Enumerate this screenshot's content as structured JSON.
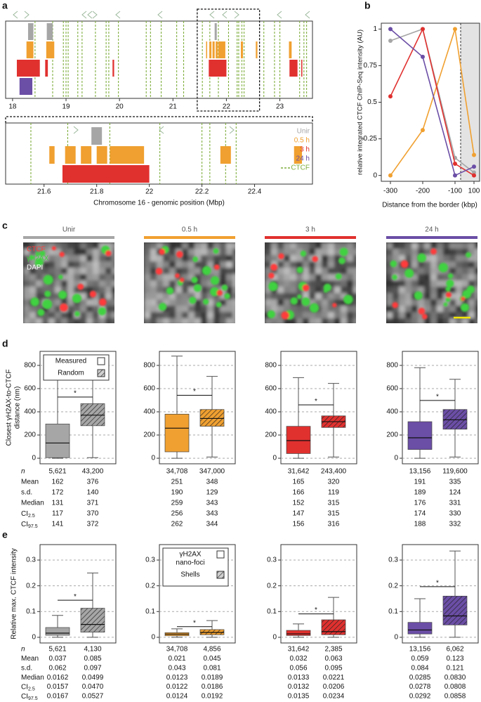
{
  "panel_labels": [
    "a",
    "b",
    "c",
    "d",
    "e"
  ],
  "chart_data": [
    {
      "type": "track",
      "xlim": [
        17.87,
        23.61
      ],
      "xticks": [
        18,
        19,
        20,
        21,
        22,
        23
      ],
      "detail_xlim": [
        21.454,
        22.62
      ],
      "detail_xticks": [
        21.6,
        21.8,
        22,
        22.2,
        22.4
      ],
      "xlabel": "Chromosome 16 - genomic position (Mbp)",
      "series": [
        {
          "name": "Unir",
          "color": "#a6a6a6",
          "intervals": [
            [
              18.29,
              18.39
            ],
            [
              18.64,
              18.75
            ],
            [
              21.78,
              21.82
            ]
          ]
        },
        {
          "name": "0.5 h",
          "color": "#f0a030",
          "intervals": [
            [
              18.26,
              18.39
            ],
            [
              18.63,
              18.78
            ],
            [
              21.62,
              21.64
            ],
            [
              21.68,
              21.72
            ],
            [
              21.74,
              21.78
            ],
            [
              21.8,
              21.84
            ],
            [
              21.85,
              21.98
            ],
            [
              22.27,
              22.31
            ],
            [
              22.55,
              22.58
            ],
            [
              23.17,
              23.22
            ]
          ]
        },
        {
          "name": "3 h",
          "color": "#e0312f",
          "intervals": [
            [
              18.08,
              18.51
            ],
            [
              18.61,
              18.66
            ],
            [
              19.87,
              19.9
            ],
            [
              21.67,
              22.0
            ],
            [
              23.18,
              23.33
            ],
            [
              23.4,
              23.42
            ]
          ]
        },
        {
          "name": "24 h",
          "color": "#6b4ea6",
          "intervals": [
            [
              18.13,
              18.37
            ]
          ]
        }
      ],
      "ctcf": {
        "name": "CTCF",
        "color": "#7fae3e",
        "positions": [
          18.42,
          18.75,
          18.95,
          19.0,
          19.04,
          19.22,
          19.3,
          19.55,
          19.75,
          19.8,
          19.98,
          20.5,
          20.58,
          20.78,
          21.07,
          21.2,
          21.55,
          21.69,
          21.85,
          22.04,
          22.2,
          22.23,
          22.29,
          22.33,
          22.7,
          22.9,
          23.0,
          23.37,
          23.45,
          23.5
        ]
      }
    },
    {
      "type": "line",
      "categories": [
        "-300",
        "-200",
        "-100",
        "100"
      ],
      "ylim": [
        -0.04,
        1.04
      ],
      "yticks": [
        0,
        0.25,
        0.5,
        0.75,
        1
      ],
      "xlabel": "Distance from the border (kbp)",
      "ylabel": "relative integrated CTCF ChIP-Seq intensity (AU)",
      "series": [
        {
          "color": "#a6a6a6",
          "values": [
            0.92,
            1.0,
            0.12,
            0.02
          ]
        },
        {
          "color": "#f0a030",
          "values": [
            0.0,
            0.31,
            1.0,
            0.14
          ]
        },
        {
          "color": "#e0312f",
          "values": [
            0.54,
            1.0,
            0.08,
            0.0
          ]
        },
        {
          "color": "#6b4ea6",
          "values": [
            1.0,
            0.81,
            0.0,
            0.06
          ]
        }
      ]
    },
    {
      "type": "image",
      "panels": [
        {
          "title": "Unir",
          "color": "#a6a6a6"
        },
        {
          "title": "0.5 h",
          "color": "#f0a030"
        },
        {
          "title": "3 h",
          "color": "#e0312f"
        },
        {
          "title": "24 h",
          "color": "#6b4ea6"
        }
      ],
      "channels": [
        {
          "name": "CTCF",
          "color": "#ff3b3b"
        },
        {
          "name": "γH2AX",
          "color": "#3fd23f"
        },
        {
          "name": "DAPI",
          "color": "#ffffff"
        }
      ]
    },
    {
      "type": "box",
      "ylim": [
        -48,
        921
      ],
      "yticks": [
        0,
        200,
        400,
        600,
        800
      ],
      "grid": true,
      "ylabel": [
        "Closest γH2AX-to-CTCF",
        "distance (nm)"
      ],
      "legend_group": 0,
      "series": [
        {
          "name": [
            "Measured"
          ],
          "hatch": false
        },
        {
          "name": [
            "Random"
          ],
          "hatch": true
        }
      ],
      "table_rows": [
        "n",
        "Mean",
        "s.d.",
        "Median",
        {
          "main": "CI",
          "sub": "2.5"
        },
        {
          "main": "CI",
          "sub": "97.5"
        }
      ],
      "groups": [
        {
          "color": "#a6a6a6",
          "sig": "*",
          "boxes": [
            {
              "whislo": 0,
              "q1": 5,
              "med": 131,
              "q3": 295,
              "whishi": 740
            },
            {
              "whislo": 5,
              "q1": 280,
              "med": 371,
              "q3": 470,
              "whishi": 760
            }
          ],
          "table": [
            [
              "5,621",
              "43,200"
            ],
            [
              "162",
              "376"
            ],
            [
              "172",
              "140"
            ],
            [
              "131",
              "371"
            ],
            [
              "117",
              "370"
            ],
            [
              "141",
              "372"
            ]
          ]
        },
        {
          "color": "#f0a030",
          "sig": "*",
          "boxes": [
            {
              "whislo": 0,
              "q1": 55,
              "med": 259,
              "q3": 380,
              "whishi": 880
            },
            {
              "whislo": 10,
              "q1": 275,
              "med": 343,
              "q3": 420,
              "whishi": 705
            }
          ],
          "table": [
            [
              "34,708",
              "347,000"
            ],
            [
              "251",
              "348"
            ],
            [
              "190",
              "129"
            ],
            [
              "259",
              "343"
            ],
            [
              "256",
              "343"
            ],
            [
              "262",
              "344"
            ]
          ]
        },
        {
          "color": "#e0312f",
          "sig": "*",
          "boxes": [
            {
              "whislo": 0,
              "q1": 40,
              "med": 152,
              "q3": 275,
              "whishi": 695
            },
            {
              "whislo": 10,
              "q1": 265,
              "med": 315,
              "q3": 365,
              "whishi": 645
            }
          ],
          "table": [
            [
              "31,642",
              "243,400"
            ],
            [
              "165",
              "320"
            ],
            [
              "166",
              "119"
            ],
            [
              "152",
              "315"
            ],
            [
              "147",
              "315"
            ],
            [
              "156",
              "316"
            ]
          ]
        },
        {
          "color": "#6b4ea6",
          "sig": "*",
          "boxes": [
            {
              "whislo": 0,
              "q1": 75,
              "med": 176,
              "q3": 315,
              "whishi": 780
            },
            {
              "whislo": 10,
              "q1": 250,
              "med": 331,
              "q3": 420,
              "whishi": 680
            }
          ],
          "table": [
            [
              "13,156",
              "119,600"
            ],
            [
              "191",
              "335"
            ],
            [
              "189",
              "124"
            ],
            [
              "176",
              "331"
            ],
            [
              "174",
              "330"
            ],
            [
              "188",
              "332"
            ]
          ]
        }
      ]
    },
    {
      "type": "box",
      "ylim": [
        -0.022,
        0.36
      ],
      "yticks": [
        0,
        0.1,
        0.2,
        0.3
      ],
      "grid": true,
      "ylabel": [
        "Relative max. CTCF intensity"
      ],
      "legend_group": 1,
      "series": [
        {
          "name": [
            "γH2AX",
            "nano-foci"
          ],
          "hatch": false
        },
        {
          "name": [
            "Shells"
          ],
          "hatch": true
        }
      ],
      "table_rows": [
        "n",
        "Mean",
        "s.d.",
        "Median",
        {
          "main": "CI",
          "sub": "2.5"
        },
        {
          "main": "CI",
          "sub": "97.5"
        }
      ],
      "groups": [
        {
          "color": "#a6a6a6",
          "sig": "*",
          "boxes": [
            {
              "whislo": 0,
              "q1": 0.008,
              "med": 0.0162,
              "q3": 0.038,
              "whishi": 0.085
            },
            {
              "whislo": 0,
              "q1": 0.02,
              "med": 0.0499,
              "q3": 0.113,
              "whishi": 0.25
            }
          ],
          "table": [
            [
              "5,621",
              "4,130"
            ],
            [
              "0.037",
              "0.085"
            ],
            [
              "0.062",
              "0.097"
            ],
            [
              "0.0162",
              "0.0499"
            ],
            [
              "0.0157",
              "0.0470"
            ],
            [
              "0.0167",
              "0.0527"
            ]
          ]
        },
        {
          "color": "#f0a030",
          "sig": "*",
          "boxes": [
            {
              "whislo": 0,
              "q1": 0.006,
              "med": 0.0123,
              "q3": 0.018,
              "whishi": 0.033
            },
            {
              "whislo": 0,
              "q1": 0.01,
              "med": 0.0189,
              "q3": 0.03,
              "whishi": 0.065
            }
          ],
          "table": [
            [
              "34,708",
              "4,856"
            ],
            [
              "0.021",
              "0.045"
            ],
            [
              "0.043",
              "0.081"
            ],
            [
              "0.0123",
              "0.0189"
            ],
            [
              "0.0122",
              "0.0186"
            ],
            [
              "0.0124",
              "0.0192"
            ]
          ]
        },
        {
          "color": "#e0312f",
          "sig": "*",
          "boxes": [
            {
              "whislo": 0,
              "q1": 0.007,
              "med": 0.0133,
              "q3": 0.027,
              "whishi": 0.052
            },
            {
              "whislo": 0,
              "q1": 0.01,
              "med": 0.0221,
              "q3": 0.068,
              "whishi": 0.155
            }
          ],
          "table": [
            [
              "31,642",
              "2,385"
            ],
            [
              "0.032",
              "0.063"
            ],
            [
              "0.056",
              "0.095"
            ],
            [
              "0.0133",
              "0.0221"
            ],
            [
              "0.0132",
              "0.0206"
            ],
            [
              "0.0135",
              "0.0234"
            ]
          ]
        },
        {
          "color": "#6b4ea6",
          "sig": "*",
          "boxes": [
            {
              "whislo": 0,
              "q1": 0.013,
              "med": 0.0285,
              "q3": 0.058,
              "whishi": 0.15
            },
            {
              "whislo": 0,
              "q1": 0.048,
              "med": 0.083,
              "q3": 0.16,
              "whishi": 0.335
            }
          ],
          "table": [
            [
              "13,156",
              "6,062"
            ],
            [
              "0.059",
              "0.123"
            ],
            [
              "0.084",
              "0.121"
            ],
            [
              "0.0285",
              "0.0830"
            ],
            [
              "0.0278",
              "0.0808"
            ],
            [
              "0.0292",
              "0.0858"
            ]
          ]
        }
      ]
    }
  ]
}
